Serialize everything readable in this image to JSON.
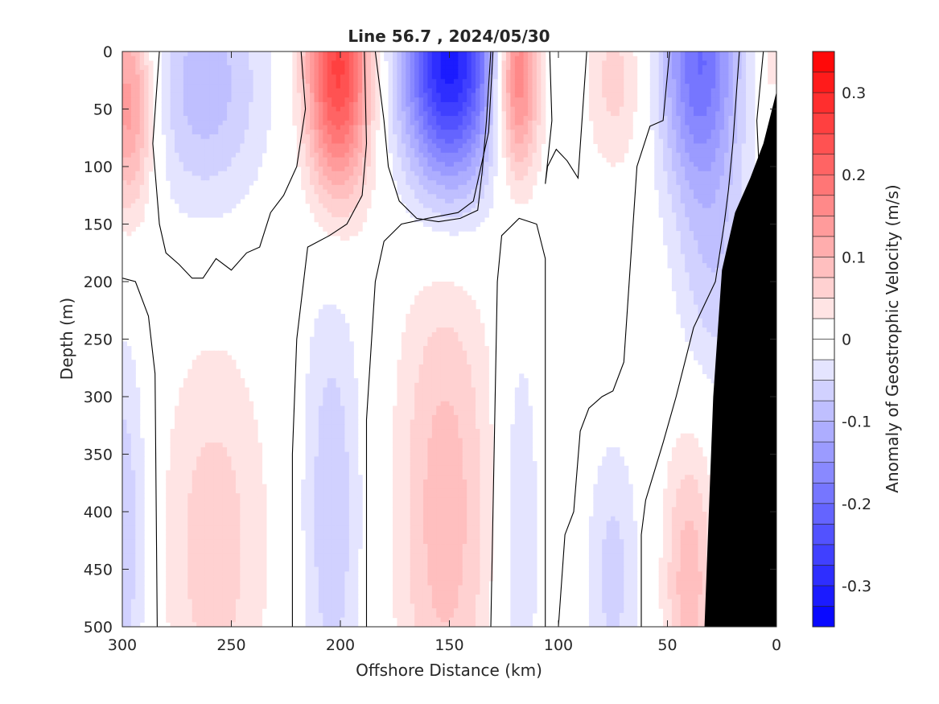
{
  "chart_data": {
    "type": "heatmap",
    "title": "Line 56.7 , 2024/05/30",
    "xlabel": "Offshore Distance (km)",
    "ylabel": "Depth (m)",
    "colorbar_label": "Anomaly of Geostrophic Velocity (m/s)",
    "xlim": [
      300,
      0
    ],
    "ylim": [
      0,
      500
    ],
    "x_direction": "reversed",
    "y_direction": "reversed",
    "x_ticks": [
      300,
      250,
      200,
      150,
      100,
      50,
      0
    ],
    "y_ticks": [
      0,
      50,
      100,
      150,
      200,
      250,
      300,
      350,
      400,
      450,
      500
    ],
    "colorbar": {
      "clim": [
        -0.35,
        0.35
      ],
      "ticks": [
        -0.3,
        -0.2,
        -0.1,
        0,
        0.1,
        0.2,
        0.3
      ],
      "tick_labels": [
        "-0.3",
        "-0.2",
        "-0.1",
        "0",
        "0.1",
        "0.2",
        "0.3"
      ],
      "levels": [
        -0.35,
        -0.325,
        -0.3,
        -0.275,
        -0.25,
        -0.225,
        -0.2,
        -0.175,
        -0.15,
        -0.125,
        -0.1,
        -0.075,
        -0.05,
        -0.025,
        0,
        0.025,
        0.05,
        0.075,
        0.1,
        0.125,
        0.15,
        0.175,
        0.2,
        0.225,
        0.25,
        0.275,
        0.3,
        0.325,
        0.35
      ],
      "colormap": "blue-white-red",
      "negative_color": "#0000ff",
      "positive_color": "#ff0000"
    },
    "bathymetry_color": "#000000",
    "bathymetry": [
      {
        "x": 0,
        "depth": 35
      },
      {
        "x": 6,
        "depth": 80
      },
      {
        "x": 12,
        "depth": 110
      },
      {
        "x": 19,
        "depth": 140
      },
      {
        "x": 25,
        "depth": 190
      },
      {
        "x": 29,
        "depth": 300
      },
      {
        "x": 33,
        "depth": 500
      }
    ],
    "features": [
      {
        "x": 297,
        "depth": 45,
        "half_width_km": 12,
        "half_height_m": 95,
        "value": 0.15
      },
      {
        "x": 300,
        "depth": 420,
        "half_width_km": 12,
        "half_height_m": 170,
        "value": -0.075
      },
      {
        "x": 262,
        "depth": 30,
        "half_width_km": 28,
        "half_height_m": 110,
        "value": -0.09
      },
      {
        "x": 258,
        "depth": 430,
        "half_width_km": 25,
        "half_height_m": 180,
        "value": 0.065
      },
      {
        "x": 201,
        "depth": 15,
        "half_width_km": 15,
        "half_height_m": 110,
        "value": 0.26
      },
      {
        "x": 204,
        "depth": 400,
        "half_width_km": 14,
        "half_height_m": 210,
        "value": -0.07
      },
      {
        "x": 150,
        "depth": 5,
        "half_width_km": 22,
        "half_height_m": 115,
        "value": -0.32
      },
      {
        "x": 152,
        "depth": 400,
        "half_width_km": 22,
        "half_height_m": 230,
        "value": 0.09
      },
      {
        "x": 119,
        "depth": 20,
        "half_width_km": 10,
        "half_height_m": 90,
        "value": 0.2
      },
      {
        "x": 118,
        "depth": 420,
        "half_width_km": 10,
        "half_height_m": 200,
        "value": -0.05
      },
      {
        "x": 92,
        "depth": 20,
        "half_width_km": 5,
        "half_height_m": 40,
        "value": -0.03
      },
      {
        "x": 74,
        "depth": 25,
        "half_width_km": 14,
        "half_height_m": 80,
        "value": 0.06
      },
      {
        "x": 75,
        "depth": 455,
        "half_width_km": 12,
        "half_height_m": 120,
        "value": -0.06
      },
      {
        "x": 35,
        "depth": 5,
        "half_width_km": 18,
        "half_height_m": 120,
        "value": -0.2
      },
      {
        "x": 28,
        "depth": 200,
        "half_width_km": 18,
        "half_height_m": 110,
        "value": -0.06
      },
      {
        "x": 40,
        "depth": 460,
        "half_width_km": 12,
        "half_height_m": 130,
        "value": 0.09
      },
      {
        "x": 2,
        "depth": 10,
        "half_width_km": 4,
        "half_height_m": 30,
        "value": 0.05
      }
    ],
    "zero_contours": [
      [
        [
          283,
          0
        ],
        [
          286,
          80
        ],
        [
          283,
          150
        ],
        [
          280,
          175
        ],
        [
          274,
          185
        ],
        [
          268,
          197
        ],
        [
          263,
          197
        ],
        [
          257,
          180
        ],
        [
          250,
          190
        ],
        [
          243,
          175
        ],
        [
          237,
          170
        ],
        [
          232,
          140
        ],
        [
          226,
          125
        ],
        [
          220,
          100
        ],
        [
          216,
          50
        ],
        [
          218,
          0
        ]
      ],
      [
        [
          300,
          197
        ],
        [
          294,
          200
        ],
        [
          288,
          230
        ],
        [
          285,
          280
        ],
        [
          284,
          500
        ]
      ],
      [
        [
          184,
          0
        ],
        [
          180,
          60
        ],
        [
          178,
          100
        ],
        [
          173,
          130
        ],
        [
          165,
          145
        ],
        [
          155,
          148
        ],
        [
          145,
          145
        ],
        [
          137,
          138
        ],
        [
          135,
          105
        ],
        [
          133,
          60
        ],
        [
          131,
          0
        ]
      ],
      [
        [
          222,
          500
        ],
        [
          222,
          350
        ],
        [
          220,
          250
        ],
        [
          215,
          170
        ],
        [
          205,
          160
        ],
        [
          197,
          150
        ],
        [
          190,
          125
        ],
        [
          188,
          80
        ],
        [
          189,
          0
        ]
      ],
      [
        [
          188,
          500
        ],
        [
          188,
          320
        ],
        [
          184,
          200
        ],
        [
          180,
          165
        ],
        [
          172,
          150
        ],
        [
          160,
          145
        ],
        [
          146,
          140
        ],
        [
          139,
          130
        ],
        [
          132,
          70
        ],
        [
          130,
          0
        ]
      ],
      [
        [
          131,
          500
        ],
        [
          130,
          400
        ],
        [
          128,
          200
        ],
        [
          126,
          160
        ],
        [
          118,
          145
        ],
        [
          110,
          150
        ],
        [
          106,
          180
        ],
        [
          106,
          500
        ]
      ],
      [
        [
          104,
          0
        ],
        [
          103,
          60
        ],
        [
          106,
          115
        ],
        [
          105,
          100
        ],
        [
          101,
          85
        ],
        [
          96,
          95
        ],
        [
          91,
          110
        ],
        [
          87,
          0
        ]
      ],
      [
        [
          100,
          500
        ],
        [
          97,
          420
        ],
        [
          93,
          400
        ],
        [
          90,
          330
        ],
        [
          86,
          310
        ],
        [
          80,
          300
        ],
        [
          75,
          295
        ],
        [
          70,
          270
        ],
        [
          64,
          100
        ],
        [
          58,
          65
        ],
        [
          52,
          60
        ],
        [
          49,
          0
        ]
      ],
      [
        [
          62,
          500
        ],
        [
          62,
          420
        ],
        [
          60,
          390
        ],
        [
          52,
          340
        ],
        [
          46,
          300
        ],
        [
          38,
          240
        ],
        [
          28,
          200
        ],
        [
          24,
          150
        ],
        [
          22,
          120
        ],
        [
          20,
          80
        ],
        [
          17,
          0
        ]
      ],
      [
        [
          8,
          100
        ],
        [
          9,
          60
        ],
        [
          6,
          0
        ]
      ]
    ]
  }
}
